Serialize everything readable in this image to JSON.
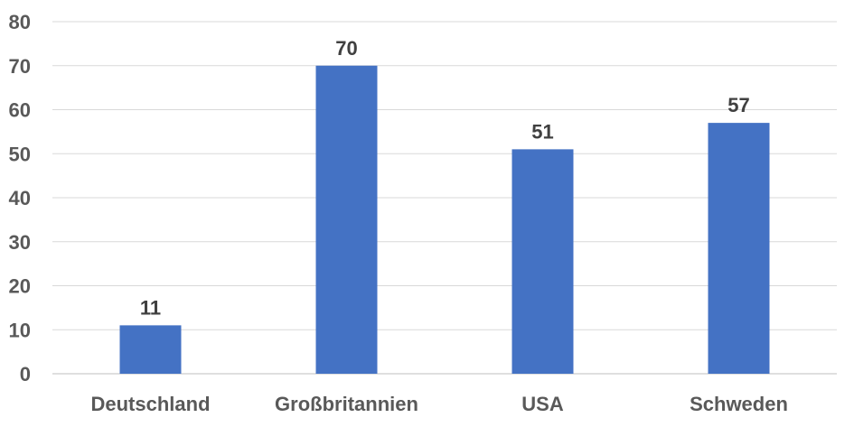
{
  "chart_data": {
    "type": "bar",
    "title": "",
    "xlabel": "",
    "ylabel": "",
    "categories": [
      "Deutschland",
      "Großbritannien",
      "USA",
      "Schweden"
    ],
    "values": [
      11,
      70,
      51,
      57
    ],
    "ylim": [
      0,
      80
    ],
    "yticks": [
      0,
      10,
      20,
      30,
      40,
      50,
      60,
      70,
      80
    ],
    "grid": true,
    "legend": "none",
    "data_labels": true,
    "bar_color": "#4472c4"
  }
}
